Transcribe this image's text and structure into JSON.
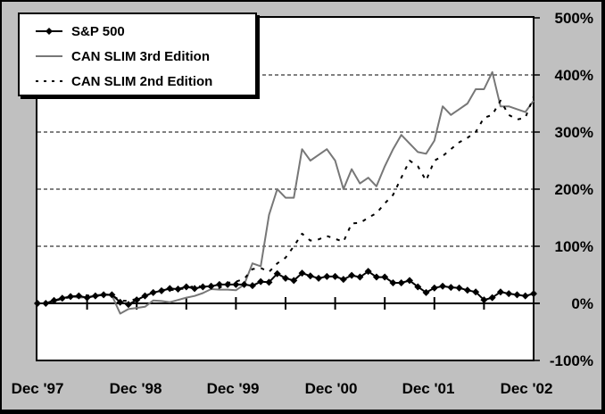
{
  "chart_data": {
    "type": "line",
    "title": "",
    "xlabel": "",
    "ylabel": "",
    "ylim": [
      -100,
      500
    ],
    "yticks": [
      -100,
      0,
      100,
      200,
      300,
      400,
      500
    ],
    "ytick_labels": [
      "-100%",
      "0%",
      "100%",
      "200%",
      "300%",
      "400%",
      "500%"
    ],
    "xtick_labels": [
      "Dec '97",
      "Dec '98",
      "Dec '99",
      "Dec '00",
      "Dec '01",
      "Dec '02"
    ],
    "x_note": "monthly points Dec 1997 to Dec 2002 (61 months)",
    "grid": "horizontal dashed at 100% intervals",
    "legend_position": "upper-left",
    "series": [
      {
        "name": "S&P 500",
        "style": "solid-black-diamond",
        "color": "#000000",
        "values": [
          0,
          0,
          5,
          9,
          12,
          13,
          10,
          13,
          15,
          15,
          2,
          -2,
          6,
          13,
          19,
          22,
          26,
          25,
          29,
          26,
          29,
          30,
          33,
          33,
          33,
          33,
          31,
          38,
          37,
          52,
          44,
          40,
          53,
          48,
          44,
          47,
          47,
          42,
          49,
          46,
          56,
          46,
          46,
          36,
          36,
          40,
          29,
          19,
          27,
          30,
          28,
          27,
          23,
          20,
          6,
          10,
          20,
          17,
          15,
          13,
          17
        ]
      },
      {
        "name": "CAN SLIM 3rd Edition",
        "style": "solid-gray",
        "color": "#777777",
        "values": [
          0,
          0,
          5,
          9,
          12,
          10,
          11,
          14,
          16,
          14,
          -18,
          -10,
          -8,
          -6,
          5,
          4,
          2,
          6,
          10,
          13,
          18,
          25,
          24,
          24,
          23,
          33,
          70,
          65,
          155,
          200,
          185,
          185,
          270,
          250,
          260,
          270,
          250,
          200,
          235,
          210,
          220,
          205,
          240,
          270,
          295,
          280,
          265,
          262,
          285,
          345,
          330,
          340,
          350,
          375,
          375,
          405,
          345,
          345,
          340,
          335,
          355
        ]
      },
      {
        "name": "CAN SLIM 2nd Edition",
        "style": "dashed-black",
        "color": "#000000",
        "values": [
          0,
          0,
          4,
          8,
          11,
          13,
          14,
          12,
          16,
          14,
          5,
          4,
          8,
          13,
          20,
          24,
          23,
          25,
          26,
          31,
          29,
          28,
          27,
          36,
          38,
          43,
          60,
          62,
          55,
          70,
          80,
          100,
          122,
          110,
          112,
          118,
          113,
          108,
          140,
          141,
          150,
          158,
          175,
          190,
          220,
          250,
          240,
          215,
          250,
          258,
          270,
          282,
          290,
          300,
          325,
          330,
          355,
          330,
          322,
          325,
          362
        ]
      }
    ]
  },
  "legend": {
    "items": [
      {
        "label": "S&P 500"
      },
      {
        "label": "CAN SLIM 3rd Edition"
      },
      {
        "label": "CAN SLIM 2nd Edition"
      }
    ]
  },
  "colors": {
    "frame_bg": "#c0c0c0",
    "plot_bg": "#ffffff",
    "sp500": "#000000",
    "cs3": "#777777",
    "cs2": "#000000"
  }
}
